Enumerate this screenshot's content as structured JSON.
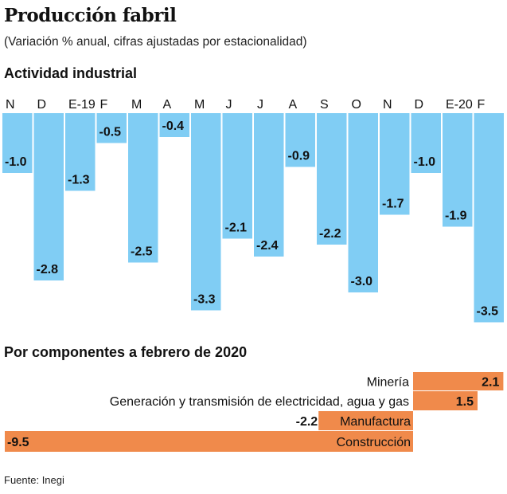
{
  "title": "Producción fabril",
  "subtitle": "(Variación % anual, cifras ajustadas por estacionalidad)",
  "source": "Fuente: Inegi",
  "colors": {
    "bar1": "#80cdf4",
    "bar2": "#f08a4b"
  },
  "chart_data": [
    {
      "type": "bar",
      "title": "Actividad industrial",
      "categories": [
        "N",
        "D",
        "E-19",
        "F",
        "M",
        "A",
        "M",
        "J",
        "J",
        "A",
        "S",
        "O",
        "N",
        "D",
        "E-20",
        "F"
      ],
      "values": [
        -1.0,
        -2.8,
        -1.3,
        -0.5,
        -2.5,
        -0.4,
        -3.3,
        -2.1,
        -2.4,
        -0.9,
        -2.2,
        -3.0,
        -1.7,
        -1.0,
        -1.9,
        -3.5
      ],
      "labels": [
        "-1.0",
        "-2.8",
        "-1.3",
        "-0.5",
        "-2.5",
        "-0.4",
        "-3.3",
        "-2.1",
        "-2.4",
        "-0.9",
        "-2.2",
        "-3.0",
        "-1.7",
        "-1.0",
        "-1.9",
        "-3.5"
      ]
    },
    {
      "type": "bar",
      "orientation": "horizontal",
      "title": "Por componentes a febrero de 2020",
      "categories": [
        "Minería",
        "Generación y transmisión de electricidad, agua y gas",
        "Manufactura",
        "Construcción"
      ],
      "values": [
        2.1,
        1.5,
        -2.2,
        -9.5
      ],
      "labels": [
        "2.1",
        "1.5",
        "-2.2",
        "-9.5"
      ]
    }
  ]
}
